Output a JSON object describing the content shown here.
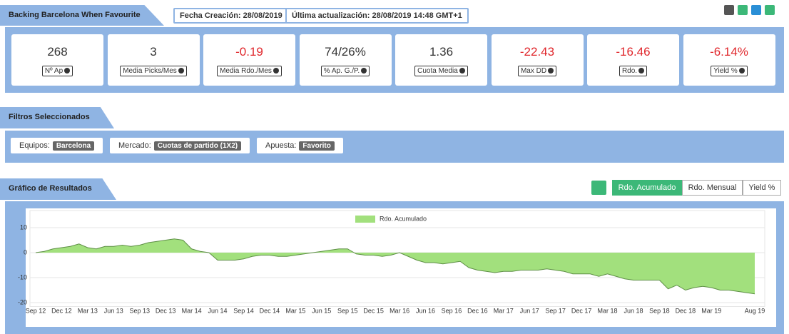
{
  "header": {
    "title": "Backing Barcelona When Favourite",
    "created": "Fecha Creación: 28/08/2019",
    "updated": "Última actualización: 28/08/2019 14:48 GMT+1"
  },
  "stats": [
    {
      "value": "268",
      "label": "Nº Ap",
      "color": "#333333"
    },
    {
      "value": "3",
      "label": "Media Picks/Mes",
      "color": "#333333"
    },
    {
      "value": "-0.19",
      "label": "Media Rdo./Mes",
      "color": "#e0262b"
    },
    {
      "value": "74/26%",
      "label": "% Ap. G./P.",
      "color": "#333333"
    },
    {
      "value": "1.36",
      "label": "Cuota Media",
      "color": "#333333"
    },
    {
      "value": "-22.43",
      "label": "Max DD",
      "color": "#e0262b"
    },
    {
      "value": "-16.46",
      "label": "Rdo.",
      "color": "#e0262b"
    },
    {
      "value": "-6.14%",
      "label": "Yield %",
      "color": "#e0262b"
    }
  ],
  "filters": {
    "title": "Filtros Seleccionados",
    "items": [
      {
        "label": "Equipos:",
        "value": "Barcelona"
      },
      {
        "label": "Mercado:",
        "value": "Cuotas de partido (1X2)"
      },
      {
        "label": "Apuesta:",
        "value": "Favorito"
      }
    ]
  },
  "results": {
    "title": "Gráfico de Resultados",
    "tabs": [
      "Rdo. Acumulado",
      "Rdo. Mensual",
      "Yield %"
    ]
  },
  "chart_data": {
    "type": "area",
    "categories": [
      "Sep 12",
      null,
      null,
      "Dec 12",
      null,
      null,
      "Mar 13",
      null,
      null,
      "Jun 13",
      null,
      null,
      "Sep 13",
      null,
      null,
      "Dec 13",
      null,
      null,
      "Mar 14",
      null,
      null,
      "Jun 14",
      null,
      null,
      "Sep 14",
      null,
      null,
      "Dec 14",
      null,
      null,
      "Mar 15",
      null,
      null,
      "Jun 15",
      null,
      null,
      "Sep 15",
      null,
      null,
      "Dec 15",
      null,
      null,
      "Mar 16",
      null,
      null,
      "Jun 16",
      null,
      null,
      "Sep 16",
      null,
      null,
      "Dec 16",
      null,
      null,
      "Mar 17",
      null,
      null,
      "Jun 17",
      null,
      null,
      "Sep 17",
      null,
      null,
      "Dec 17",
      null,
      null,
      "Mar 18",
      null,
      null,
      "Jun 18",
      null,
      null,
      "Sep 18",
      null,
      null,
      "Dec 18",
      null,
      null,
      "Mar 19",
      null,
      null,
      null,
      null,
      "Aug 19"
    ],
    "series": [
      {
        "name": "Rdo. Acumulado",
        "color": "#a2e07d",
        "values": [
          0,
          0.5,
          1.5,
          2,
          2.5,
          3.5,
          2,
          1.5,
          2.5,
          2.5,
          3,
          2.5,
          3,
          4,
          4.5,
          5,
          5.5,
          5,
          1.5,
          0.5,
          0,
          -3,
          -3,
          -3,
          -2.5,
          -1.5,
          -1,
          -1,
          -1.5,
          -1.5,
          -1,
          -0.5,
          0,
          0.5,
          1,
          1.5,
          1.5,
          -0.5,
          -1,
          -1,
          -1.5,
          -1,
          0,
          -1.5,
          -3,
          -4,
          -4,
          -4.5,
          -4,
          -3.5,
          -6,
          -7,
          -7.5,
          -8,
          -7.5,
          -7.5,
          -7,
          -7,
          -7,
          -6.5,
          -7,
          -7.5,
          -8.5,
          -8.5,
          -8.5,
          -9.5,
          -8.5,
          -9.5,
          -10.5,
          -11,
          -11,
          -11,
          -11,
          -14.5,
          -13,
          -15,
          -14,
          -13.5,
          -14,
          -15,
          -15,
          -15.5,
          -16,
          -16.5
        ]
      }
    ],
    "ylim": [
      -21,
      13
    ],
    "yticks": [
      -20,
      -10,
      0,
      10
    ],
    "grid": true
  }
}
